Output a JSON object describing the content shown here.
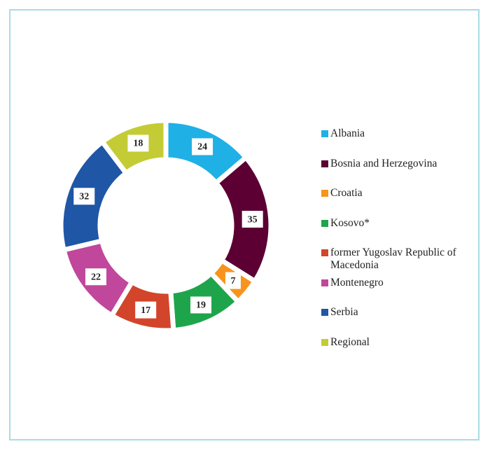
{
  "chart_data": {
    "type": "donut",
    "categories": [
      "Albania",
      "Bosnia and Herzegovina",
      "Croatia",
      "Kosovo*",
      "former Yugoslav Republic of Macedonia",
      "Montenegro",
      "Serbia",
      "Regional"
    ],
    "values": [
      24,
      35,
      7,
      19,
      17,
      22,
      32,
      18
    ],
    "colors": [
      "#1fb0e6",
      "#5c0033",
      "#f7941d",
      "#1ea54b",
      "#d2452a",
      "#c0479b",
      "#1f56a6",
      "#c3cc35"
    ],
    "legend": "right"
  }
}
